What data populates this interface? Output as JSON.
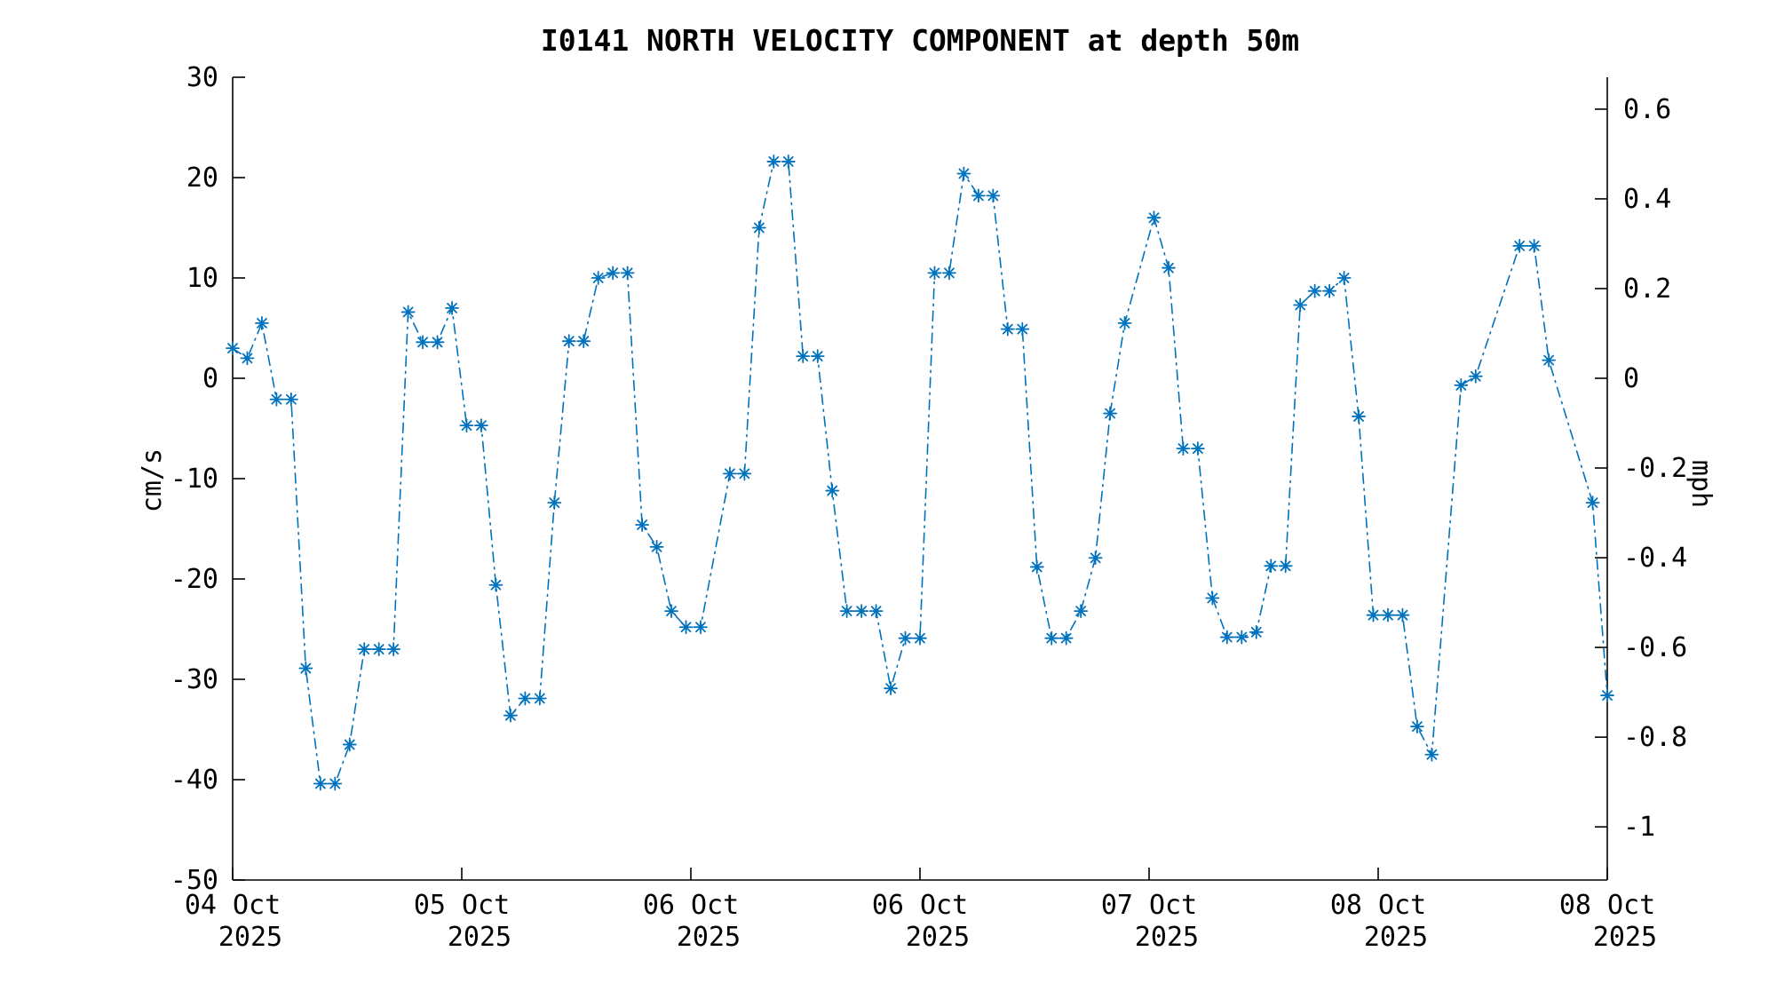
{
  "figure": {
    "background_color": "#ffffff",
    "axis_color": "#000000"
  },
  "chart_data": {
    "type": "line",
    "title": "I0141 NORTH VELOCITY COMPONENT at depth 50m",
    "ylabel": "cm/s",
    "y2label": "mph",
    "line_color": "#0072BD",
    "line_style": "dash-dot",
    "marker": "asterisk",
    "grid": false,
    "legend": "none",
    "ylim": [
      -50,
      30
    ],
    "y_ticks_cms": [
      30,
      20,
      10,
      0,
      -10,
      -20,
      -30,
      -40,
      -50
    ],
    "y2_ticks_mph": [
      0.6,
      0.4,
      0.2,
      0,
      -0.2,
      -0.4,
      -0.6,
      -0.8,
      -1
    ],
    "mph_per_cms": 0.0223694,
    "x_range_days": 4.5,
    "x_tick_labels": [
      {
        "line1": "04 Oct",
        "line2": "2025"
      },
      {
        "line1": "05 Oct",
        "line2": "2025"
      },
      {
        "line1": "06 Oct",
        "line2": "2025"
      },
      {
        "line1": "06 Oct",
        "line2": "2025"
      },
      {
        "line1": "07 Oct",
        "line2": "2025"
      },
      {
        "line1": "08 Oct",
        "line2": "2025"
      },
      {
        "line1": "08 Oct",
        "line2": "2025"
      }
    ],
    "samples_note": "values in cm/s, evenly spaced in time across the full x-range; null = missing sample (line drawn through gap)",
    "values_cms": [
      3.0,
      2.0,
      5.5,
      -2.1,
      -2.1,
      -28.9,
      -40.4,
      -40.4,
      -36.5,
      -27.0,
      -27.0,
      -27.0,
      6.6,
      3.6,
      3.6,
      7.0,
      -4.7,
      -4.7,
      -20.6,
      -33.6,
      -31.9,
      -31.9,
      -12.4,
      3.7,
      3.7,
      10.0,
      10.5,
      10.5,
      -14.6,
      -16.8,
      -23.2,
      -24.8,
      -24.8,
      null,
      -9.5,
      -9.5,
      15.0,
      21.6,
      21.6,
      2.2,
      2.2,
      -11.2,
      -23.2,
      -23.2,
      -23.2,
      -30.9,
      -25.9,
      -25.9,
      10.5,
      10.5,
      20.4,
      18.2,
      18.2,
      4.9,
      4.9,
      -18.8,
      -25.9,
      -25.9,
      -23.2,
      -17.9,
      -3.5,
      5.5,
      null,
      16.0,
      11.0,
      -7.0,
      -7.0,
      -21.9,
      -25.8,
      -25.8,
      -25.3,
      -18.7,
      -18.7,
      7.3,
      8.7,
      8.7,
      10.0,
      -3.8,
      -23.6,
      -23.6,
      -23.6,
      -34.7,
      -37.5,
      null,
      -0.7,
      0.2,
      null,
      null,
      13.2,
      13.2,
      1.8,
      null,
      null,
      -12.4,
      -31.6
    ]
  }
}
